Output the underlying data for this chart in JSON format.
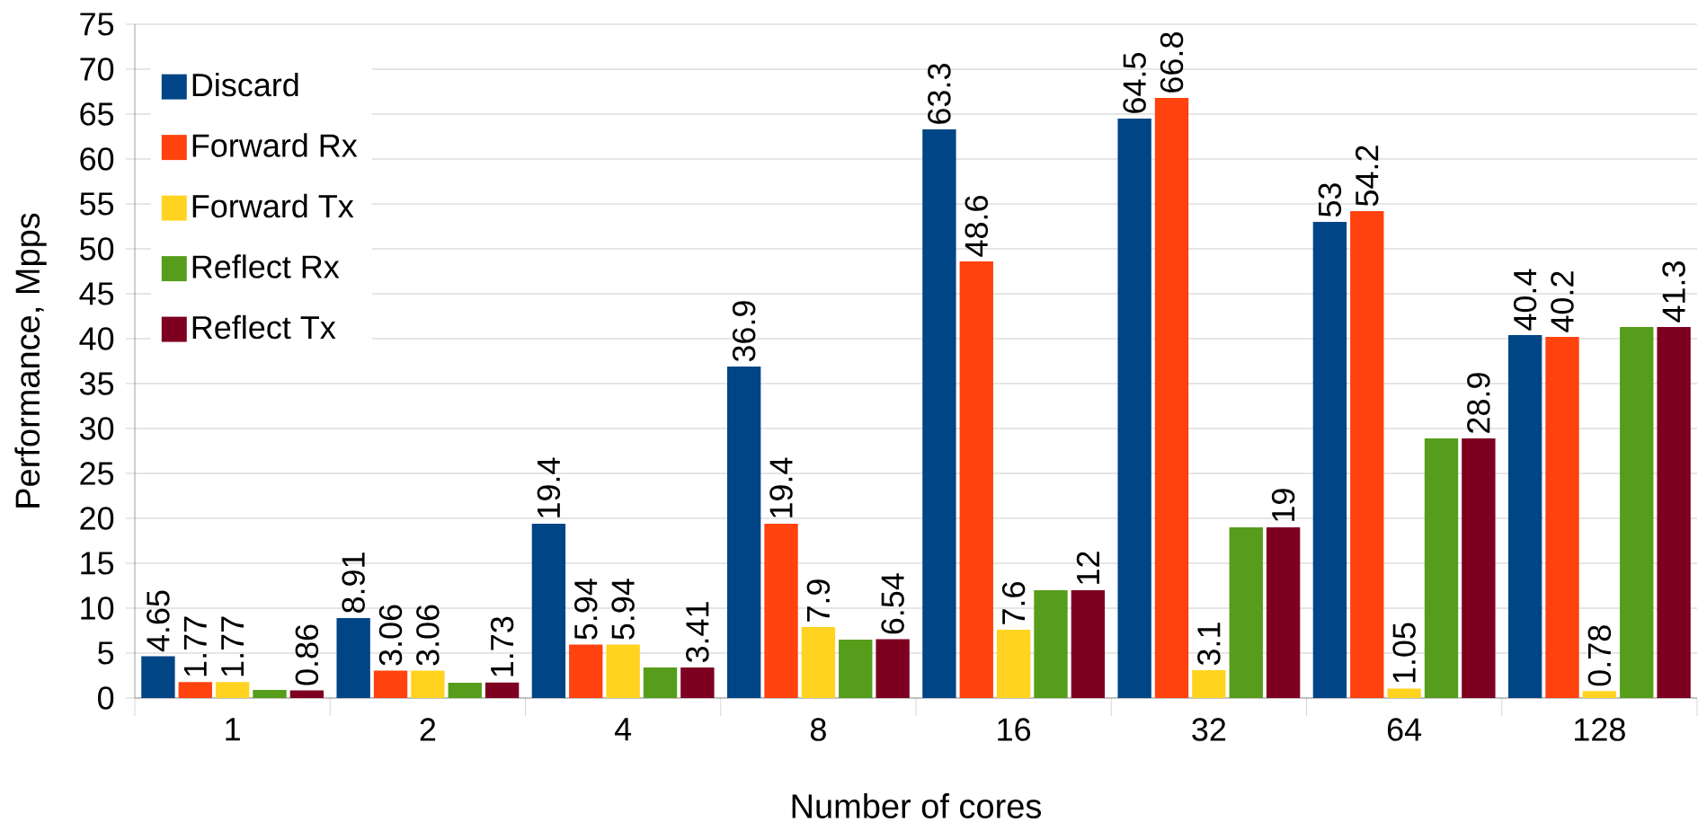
{
  "chart_data": {
    "type": "bar",
    "xlabel": "Number of cores",
    "ylabel": "Performance, Mpps",
    "categories": [
      "1",
      "2",
      "4",
      "8",
      "16",
      "32",
      "64",
      "128"
    ],
    "series": [
      {
        "name": "Discard",
        "color": "#004586",
        "values": [
          4.65,
          8.91,
          19.4,
          36.9,
          63.3,
          64.5,
          53,
          40.4
        ],
        "value_labels": [
          "4.65",
          "8.91",
          "19.4",
          "36.9",
          "63.3",
          "64.5",
          "53",
          "40.4"
        ]
      },
      {
        "name": "Forward Rx",
        "color": "#ff420e",
        "values": [
          1.77,
          3.06,
          5.94,
          19.4,
          48.6,
          66.8,
          54.2,
          40.2
        ],
        "value_labels": [
          "1.77",
          "3.06",
          "5.94",
          "19.4",
          "48.6",
          "66.8",
          "54.2",
          "40.2"
        ]
      },
      {
        "name": "Forward Tx",
        "color": "#ffd320",
        "values": [
          1.77,
          3.06,
          5.94,
          7.9,
          7.6,
          3.1,
          1.05,
          0.78
        ],
        "value_labels": [
          "1.77",
          "3.06",
          "5.94",
          "7.9",
          "7.6",
          "3.1",
          "1.05",
          "0.78"
        ]
      },
      {
        "name": "Reflect Rx",
        "color": "#579d1c",
        "values": [
          0.9,
          1.7,
          3.4,
          6.5,
          12,
          19,
          28.9,
          41.3
        ]
      },
      {
        "name": "Reflect Tx",
        "color": "#7e0021",
        "values": [
          0.86,
          1.73,
          3.41,
          6.54,
          12,
          19,
          28.9,
          41.3
        ],
        "value_labels": [
          "0.86",
          "1.73",
          "3.41",
          "6.54",
          "12",
          "19",
          "28.9",
          "41.3"
        ]
      }
    ],
    "ylim": [
      0,
      75
    ],
    "yticks": [
      0,
      5,
      10,
      15,
      20,
      25,
      30,
      35,
      40,
      45,
      50,
      55,
      60,
      65,
      70,
      75
    ],
    "grid": "y",
    "legend": "top left"
  }
}
